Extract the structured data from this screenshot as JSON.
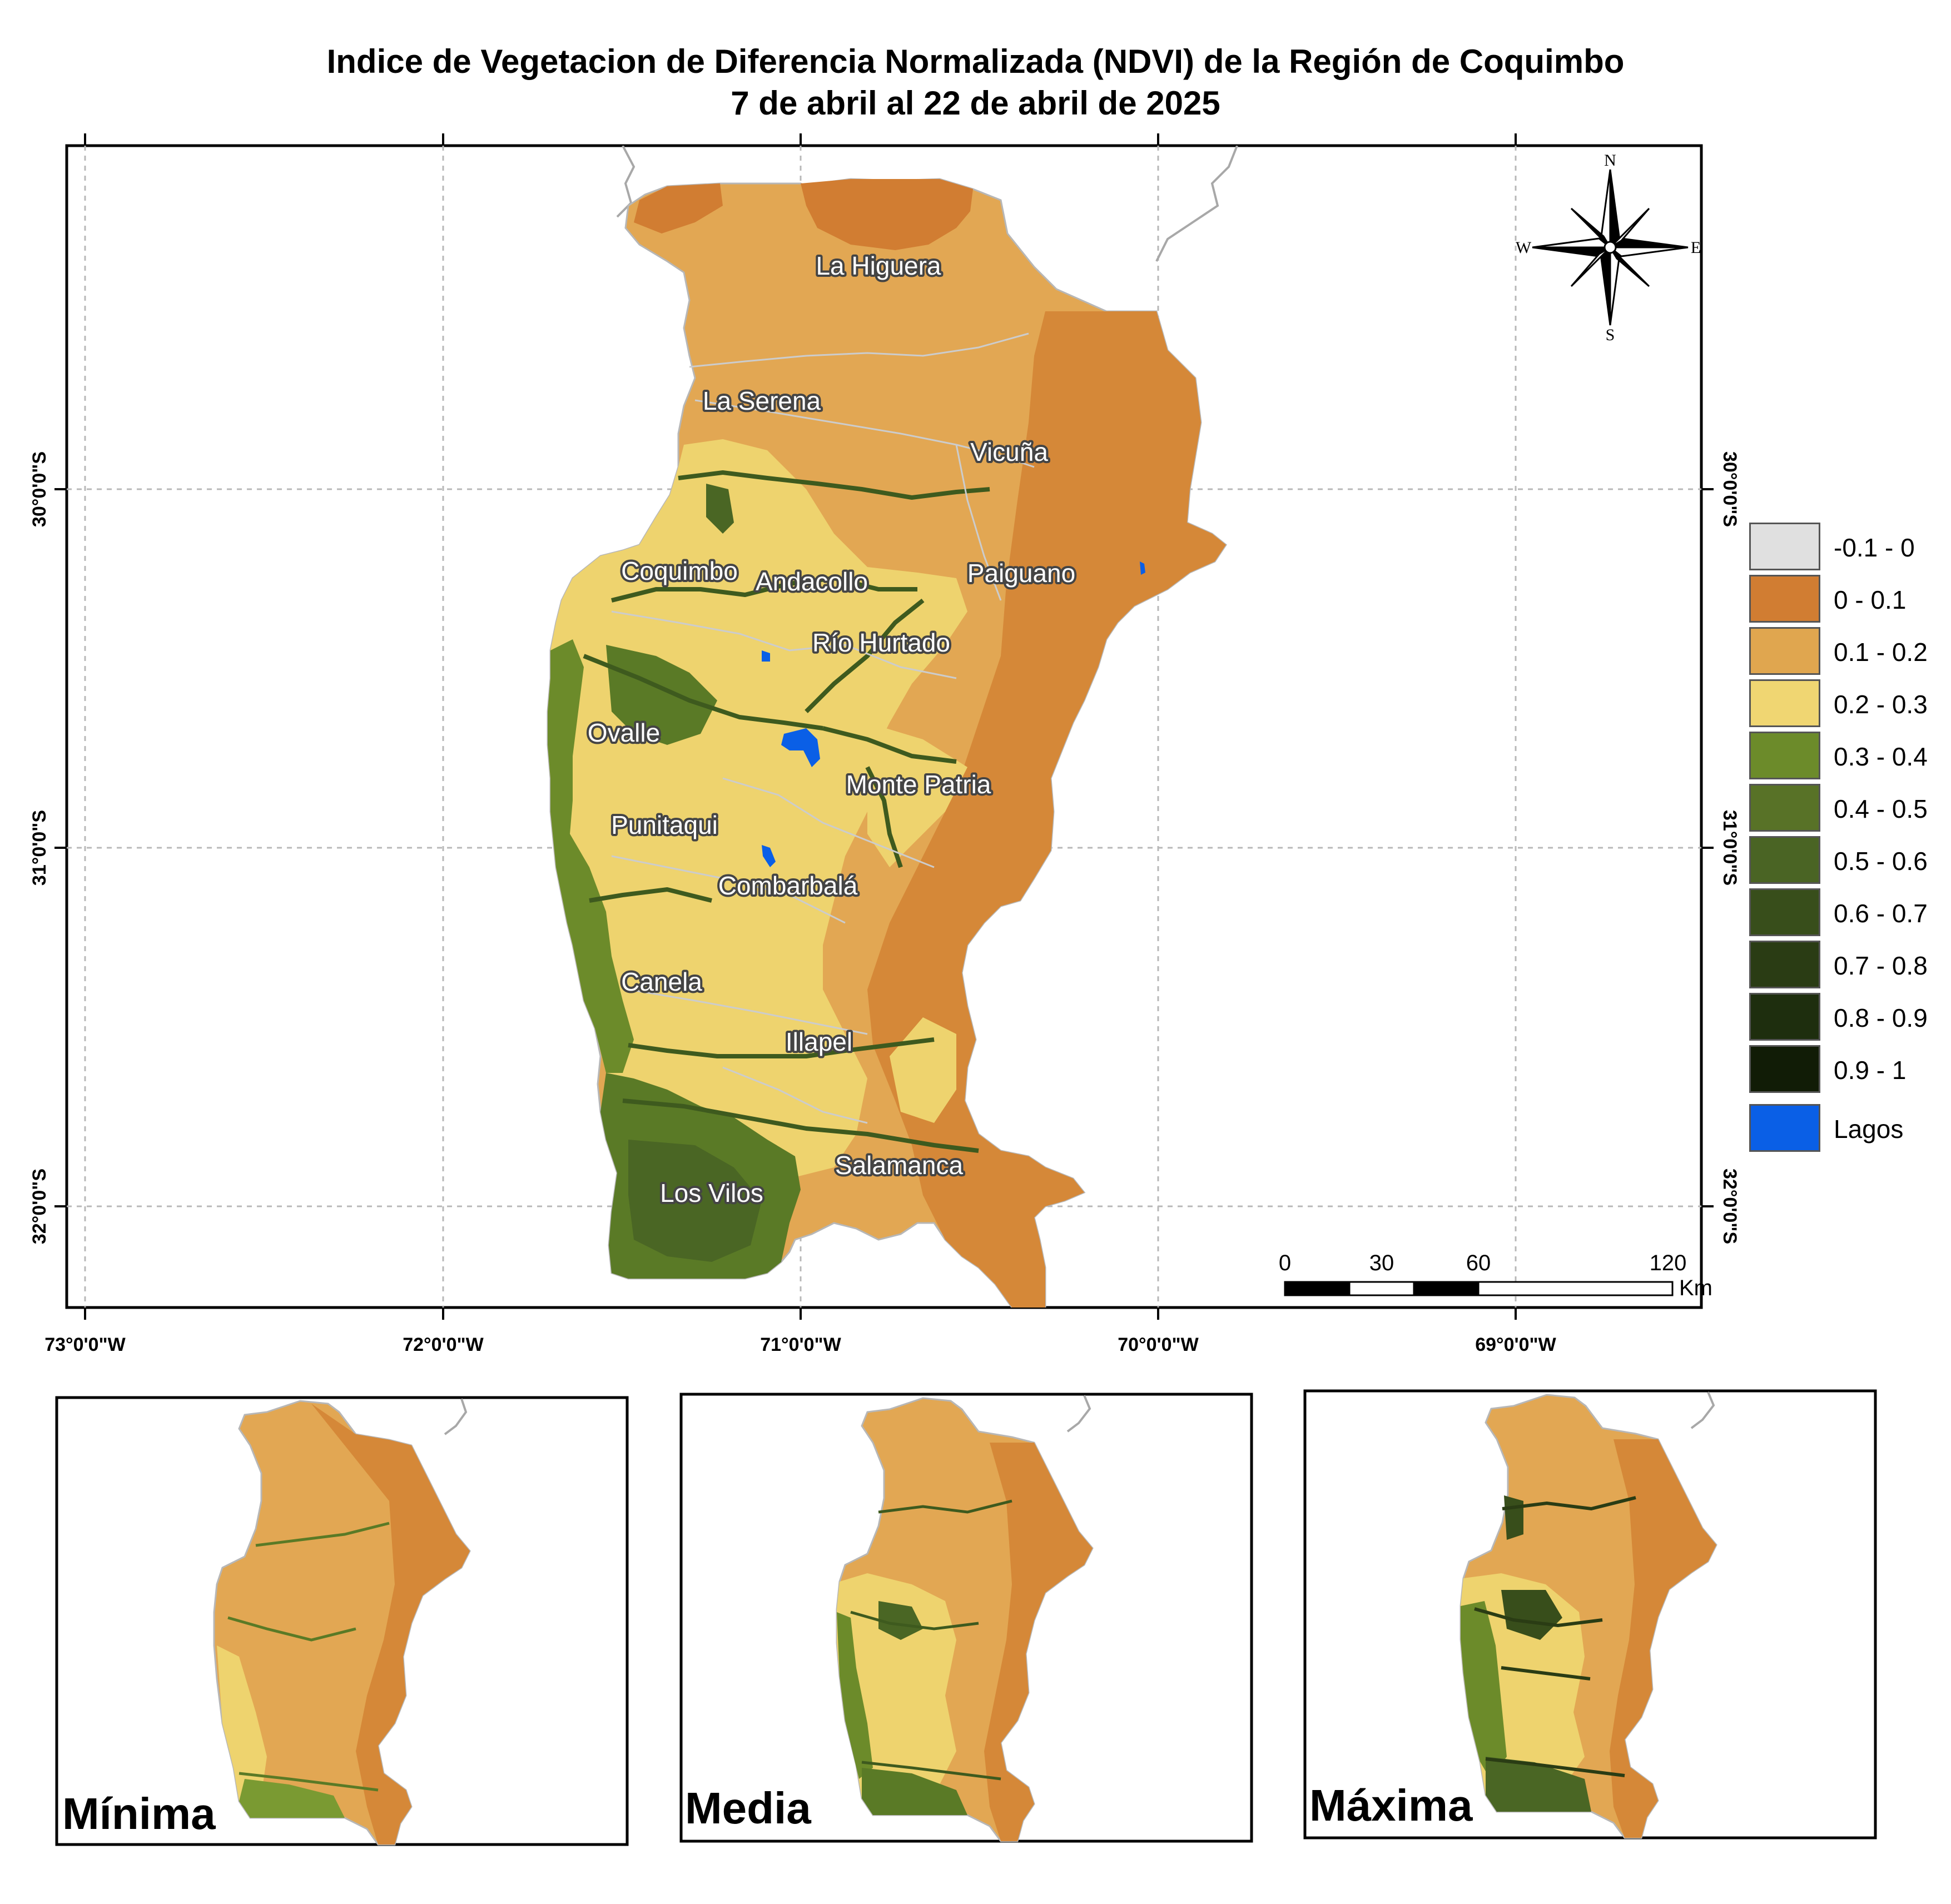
{
  "title": {
    "line1": "Indice de Vegetacion de Diferencia Normalizada (NDVI) de la Región de Coquimbo",
    "line2": "7 de abril al 22 de abril de 2025"
  },
  "axes": {
    "longitudes": [
      "73°0'0\"W",
      "72°0'0\"W",
      "71°0'0\"W",
      "70°0'0\"W",
      "69°0'0\"W"
    ],
    "latitudes": [
      "30°0'0\"S",
      "31°0'0\"S",
      "32°0'0\"S"
    ]
  },
  "compass": {
    "north": "N",
    "south": "S",
    "east": "E",
    "west": "W"
  },
  "places": [
    "La Higuera",
    "La Serena",
    "Vicuña",
    "Coquimbo",
    "Andacollo",
    "Paiguano",
    "Río Hurtado",
    "Ovalle",
    "Monte Patria",
    "Punitaqui",
    "Combarbalá",
    "Canela",
    "Illapel",
    "Salamanca",
    "Los Vilos"
  ],
  "scale_bar": {
    "ticks": [
      "0",
      "30",
      "60",
      "120"
    ],
    "unit": "Km"
  },
  "legend": [
    {
      "label": "-0.1 - 0",
      "color": "#e0e0e0"
    },
    {
      "label": "0 - 0.1",
      "color": "#d17d32"
    },
    {
      "label": "0.1 - 0.2",
      "color": "#e0a64f"
    },
    {
      "label": "0.2 - 0.3",
      "color": "#f0d672"
    },
    {
      "label": "0.3 - 0.4",
      "color": "#6c8b2a"
    },
    {
      "label": "0.4 - 0.5",
      "color": "#587227"
    },
    {
      "label": "0.5 - 0.6",
      "color": "#4a6424"
    },
    {
      "label": "0.6 - 0.7",
      "color": "#384e1b"
    },
    {
      "label": "0.7 - 0.8",
      "color": "#2a3c14"
    },
    {
      "label": "0.8 - 0.9",
      "color": "#1e2e0e"
    },
    {
      "label": "0.9 - 1",
      "color": "#111c06"
    },
    {
      "label": "Lagos",
      "color": "#0a5fe6"
    }
  ],
  "insets": [
    "Mínima",
    "Media",
    "Máxima"
  ]
}
